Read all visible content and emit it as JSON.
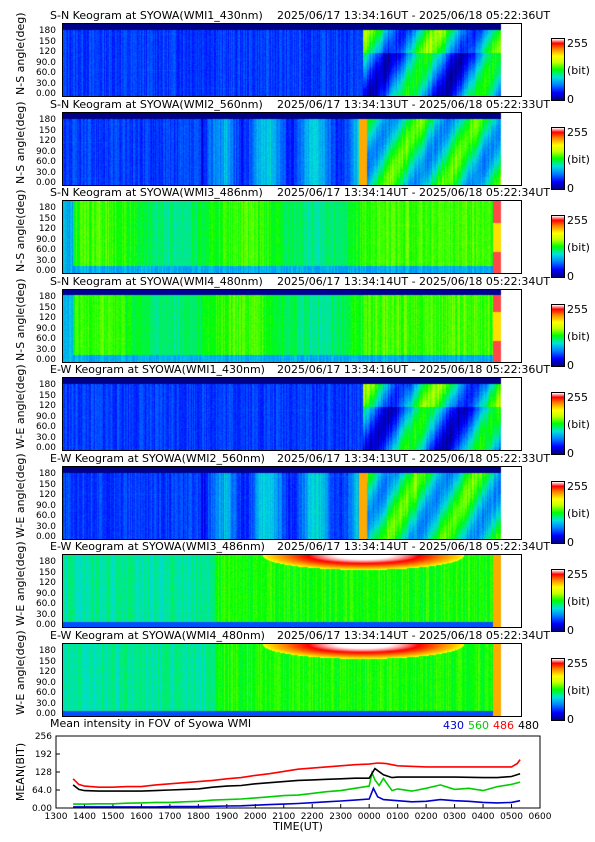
{
  "panels": [
    {
      "title_left": "S-N Keogram at SYOWA(WMI1_430nm)",
      "title_right": "2025/06/17 13:34:16UT - 2025/06/18 05:22:36UT",
      "ylabel": "N-S angle(deg)",
      "scheme": "wmi1"
    },
    {
      "title_left": "S-N Keogram at SYOWA(WMI2_560nm)",
      "title_right": "2025/06/17 13:34:13UT - 2025/06/18 05:22:33UT",
      "ylabel": "N-S angle(deg)",
      "scheme": "wmi2"
    },
    {
      "title_left": "S-N Keogram at SYOWA(WMI3_486nm)",
      "title_right": "2025/06/17 13:34:14UT - 2025/06/18 05:22:34UT",
      "ylabel": "N-S angle(deg)",
      "scheme": "wmi3"
    },
    {
      "title_left": "S-N Keogram at SYOWA(WMI4_480nm)",
      "title_right": "2025/06/17 13:34:14UT - 2025/06/18 05:22:34UT",
      "ylabel": "N-S angle(deg)",
      "scheme": "wmi4"
    },
    {
      "title_left": "E-W Keogram at SYOWA(WMI1_430nm)",
      "title_right": "2025/06/17 13:34:16UT - 2025/06/18 05:22:36UT",
      "ylabel": "W-E angle(deg)",
      "scheme": "wmi1"
    },
    {
      "title_left": "E-W Keogram at SYOWA(WMI2_560nm)",
      "title_right": "2025/06/17 13:34:13UT - 2025/06/18 05:22:33UT",
      "ylabel": "W-E angle(deg)",
      "scheme": "wmi2"
    },
    {
      "title_left": "E-W Keogram at SYOWA(WMI3_486nm)",
      "title_right": "2025/06/17 13:34:14UT - 2025/06/18 05:22:34UT",
      "ylabel": "W-E angle(deg)",
      "scheme": "wmi3ew"
    },
    {
      "title_left": "E-W Keogram at SYOWA(WMI4_480nm)",
      "title_right": "2025/06/17 13:34:14UT - 2025/06/18 05:22:34UT",
      "ylabel": "W-E angle(deg)",
      "scheme": "wmi4ew"
    }
  ],
  "angle_ticks": [
    "180",
    "150",
    "120",
    "90.0",
    "60.0",
    "30.0",
    "0.00"
  ],
  "colorbar": {
    "max_label": "255",
    "unit_label": "(bit)",
    "min_label": "0"
  },
  "chart_data": {
    "type": "line",
    "title": "Mean intensity in FOV of Syowa WMI",
    "xlabel": "TIME(UT)",
    "ylabel": "MEAN(BIT)",
    "x_ticks": [
      "1300",
      "1400",
      "1500",
      "1600",
      "1700",
      "1800",
      "1900",
      "2000",
      "2100",
      "2200",
      "2300",
      "0000",
      "0100",
      "0200",
      "0300",
      "0400",
      "0500",
      "0600"
    ],
    "y_ticks": [
      "256",
      "192",
      "128",
      "64.0",
      "0.00"
    ],
    "ylim": [
      0,
      256
    ],
    "series": [
      {
        "name": "430",
        "color": "#0000cc",
        "x": [
          13.6,
          14,
          14.5,
          15,
          15.5,
          16,
          16.5,
          17,
          17.5,
          18,
          18.5,
          19,
          19.5,
          20,
          20.5,
          21,
          21.5,
          22,
          22.5,
          23,
          23.5,
          24,
          24.15,
          24.3,
          24.5,
          25,
          25.5,
          26,
          26.5,
          27,
          27.5,
          28,
          28.5,
          29,
          29.3
        ],
        "y": [
          4,
          4,
          4,
          4,
          4,
          4,
          4,
          5,
          5,
          5,
          6,
          7,
          8,
          10,
          12,
          14,
          16,
          19,
          22,
          25,
          28,
          32,
          70,
          40,
          30,
          26,
          22,
          24,
          30,
          26,
          24,
          20,
          18,
          20,
          26
        ]
      },
      {
        "name": "560",
        "color": "#00cc00",
        "x": [
          13.6,
          14,
          14.5,
          15,
          15.5,
          16,
          16.5,
          17,
          17.5,
          18,
          18.5,
          19,
          19.5,
          20,
          20.5,
          21,
          21.5,
          22,
          22.5,
          23,
          23.5,
          24,
          24.1,
          24.2,
          24.35,
          24.5,
          24.8,
          25,
          25.5,
          26,
          26.5,
          27,
          27.5,
          28,
          28.5,
          29,
          29.3
        ],
        "y": [
          14,
          14,
          15,
          15,
          17,
          18,
          20,
          20,
          22,
          24,
          28,
          30,
          32,
          36,
          40,
          44,
          46,
          52,
          58,
          62,
          70,
          78,
          125,
          100,
          80,
          105,
          62,
          68,
          60,
          70,
          82,
          66,
          70,
          62,
          76,
          84,
          92
        ]
      },
      {
        "name": "486",
        "color": "#ff0000",
        "x": [
          13.6,
          13.8,
          14,
          14.5,
          15,
          15.5,
          16,
          16.5,
          17,
          17.5,
          18,
          18.5,
          19,
          19.5,
          20,
          20.5,
          21,
          21.5,
          22,
          22.5,
          23,
          23.5,
          24,
          24.3,
          24.6,
          25,
          26,
          27,
          28,
          28.5,
          29,
          29.2,
          29.3
        ],
        "y": [
          104,
          84,
          78,
          74,
          74,
          76,
          76,
          82,
          86,
          90,
          94,
          98,
          104,
          108,
          116,
          122,
          130,
          138,
          142,
          146,
          150,
          154,
          156,
          160,
          158,
          150,
          146,
          146,
          146,
          146,
          146,
          158,
          172
        ]
      },
      {
        "name": "480",
        "color": "#000000",
        "x": [
          13.6,
          13.8,
          14,
          14.5,
          15,
          15.5,
          16,
          16.5,
          17,
          17.5,
          18,
          18.5,
          19,
          19.5,
          20,
          20.5,
          21,
          21.5,
          22,
          22.5,
          23,
          23.5,
          24,
          24.2,
          24.5,
          24.8,
          25,
          26,
          27,
          28,
          28.5,
          29,
          29.3
        ],
        "y": [
          82,
          66,
          62,
          60,
          60,
          60,
          60,
          62,
          64,
          66,
          68,
          74,
          78,
          80,
          86,
          90,
          94,
          98,
          100,
          102,
          104,
          106,
          106,
          140,
          118,
          108,
          110,
          110,
          110,
          108,
          108,
          112,
          122
        ]
      }
    ]
  }
}
